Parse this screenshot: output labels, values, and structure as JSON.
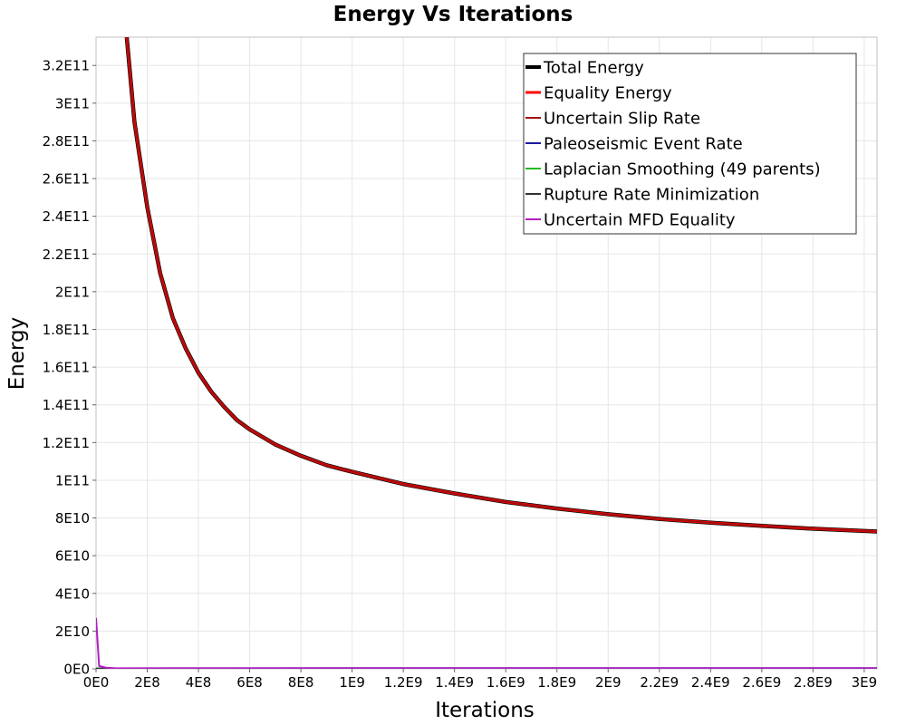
{
  "chart_data": {
    "type": "line",
    "title": "Energy Vs Iterations",
    "xlabel": "Iterations",
    "ylabel": "Energy",
    "xlim": [
      0,
      3050000000
    ],
    "ylim": [
      0,
      335000000000
    ],
    "grid": true,
    "legend_position": "top-right",
    "x_ticks": [
      {
        "value": 0,
        "label": "0E0"
      },
      {
        "value": 200000000,
        "label": "2E8"
      },
      {
        "value": 400000000,
        "label": "4E8"
      },
      {
        "value": 600000000,
        "label": "6E8"
      },
      {
        "value": 800000000,
        "label": "8E8"
      },
      {
        "value": 1000000000,
        "label": "1E9"
      },
      {
        "value": 1200000000,
        "label": "1.2E9"
      },
      {
        "value": 1400000000,
        "label": "1.4E9"
      },
      {
        "value": 1600000000,
        "label": "1.6E9"
      },
      {
        "value": 1800000000,
        "label": "1.8E9"
      },
      {
        "value": 2000000000,
        "label": "2E9"
      },
      {
        "value": 2200000000,
        "label": "2.2E9"
      },
      {
        "value": 2400000000,
        "label": "2.4E9"
      },
      {
        "value": 2600000000,
        "label": "2.6E9"
      },
      {
        "value": 2800000000,
        "label": "2.8E9"
      },
      {
        "value": 3000000000,
        "label": "3E9"
      }
    ],
    "y_ticks": [
      {
        "value": 0,
        "label": "0E0"
      },
      {
        "value": 20000000000,
        "label": "2E10"
      },
      {
        "value": 40000000000,
        "label": "4E10"
      },
      {
        "value": 60000000000,
        "label": "6E10"
      },
      {
        "value": 80000000000,
        "label": "8E10"
      },
      {
        "value": 100000000000,
        "label": "1E11"
      },
      {
        "value": 120000000000,
        "label": "1.2E11"
      },
      {
        "value": 140000000000,
        "label": "1.4E11"
      },
      {
        "value": 160000000000,
        "label": "1.6E11"
      },
      {
        "value": 180000000000,
        "label": "1.8E11"
      },
      {
        "value": 200000000000,
        "label": "2E11"
      },
      {
        "value": 220000000000,
        "label": "2.2E11"
      },
      {
        "value": 240000000000,
        "label": "2.4E11"
      },
      {
        "value": 260000000000,
        "label": "2.6E11"
      },
      {
        "value": 280000000000,
        "label": "2.8E11"
      },
      {
        "value": 300000000000,
        "label": "3E11"
      },
      {
        "value": 320000000000,
        "label": "3.2E11"
      }
    ],
    "series": [
      {
        "name": "Total Energy",
        "color": "#000000",
        "values": [
          [
            120000000,
            335000000000
          ],
          [
            150000000,
            290000000000
          ],
          [
            200000000,
            245000000000
          ],
          [
            250000000,
            210000000000
          ],
          [
            300000000,
            186000000000
          ],
          [
            350000000,
            170000000000
          ],
          [
            400000000,
            157000000000
          ],
          [
            450000000,
            147000000000
          ],
          [
            500000000,
            139000000000
          ],
          [
            550000000,
            132000000000
          ],
          [
            600000000,
            127000000000
          ],
          [
            700000000,
            119000000000
          ],
          [
            800000000,
            113000000000
          ],
          [
            900000000,
            108000000000
          ],
          [
            1000000000,
            104500000000
          ],
          [
            1200000000,
            98000000000
          ],
          [
            1400000000,
            93000000000
          ],
          [
            1600000000,
            88500000000
          ],
          [
            1800000000,
            85000000000
          ],
          [
            2000000000,
            82000000000
          ],
          [
            2200000000,
            79500000000
          ],
          [
            2400000000,
            77500000000
          ],
          [
            2600000000,
            75800000000
          ],
          [
            2800000000,
            74300000000
          ],
          [
            3050000000,
            72800000000
          ]
        ]
      },
      {
        "name": "Equality Energy",
        "color": "#ff0000",
        "values": [
          [
            120000000,
            335000000000
          ],
          [
            150000000,
            290000000000
          ],
          [
            200000000,
            245000000000
          ],
          [
            250000000,
            210000000000
          ],
          [
            300000000,
            186000000000
          ],
          [
            350000000,
            170000000000
          ],
          [
            400000000,
            157000000000
          ],
          [
            450000000,
            147000000000
          ],
          [
            500000000,
            139000000000
          ],
          [
            550000000,
            132000000000
          ],
          [
            600000000,
            127000000000
          ],
          [
            700000000,
            119000000000
          ],
          [
            800000000,
            113000000000
          ],
          [
            900000000,
            108000000000
          ],
          [
            1000000000,
            104500000000
          ],
          [
            1200000000,
            98000000000
          ],
          [
            1400000000,
            93000000000
          ],
          [
            1600000000,
            88500000000
          ],
          [
            1800000000,
            85000000000
          ],
          [
            2000000000,
            82000000000
          ],
          [
            2200000000,
            79500000000
          ],
          [
            2400000000,
            77500000000
          ],
          [
            2600000000,
            75800000000
          ],
          [
            2800000000,
            74300000000
          ],
          [
            3050000000,
            72800000000
          ]
        ]
      },
      {
        "name": "Uncertain Slip Rate",
        "color": "#a01010",
        "values": [
          [
            120000000,
            335000000000
          ],
          [
            150000000,
            290000000000
          ],
          [
            200000000,
            245000000000
          ],
          [
            250000000,
            210000000000
          ],
          [
            300000000,
            186000000000
          ],
          [
            350000000,
            170000000000
          ],
          [
            400000000,
            157000000000
          ],
          [
            450000000,
            147000000000
          ],
          [
            500000000,
            139000000000
          ],
          [
            550000000,
            132000000000
          ],
          [
            600000000,
            127000000000
          ],
          [
            700000000,
            119000000000
          ],
          [
            800000000,
            113000000000
          ],
          [
            900000000,
            108000000000
          ],
          [
            1000000000,
            104500000000
          ],
          [
            1200000000,
            98000000000
          ],
          [
            1400000000,
            93000000000
          ],
          [
            1600000000,
            88500000000
          ],
          [
            1800000000,
            85000000000
          ],
          [
            2000000000,
            82000000000
          ],
          [
            2200000000,
            79500000000
          ],
          [
            2400000000,
            77500000000
          ],
          [
            2600000000,
            75800000000
          ],
          [
            2800000000,
            74300000000
          ],
          [
            3050000000,
            72800000000
          ]
        ]
      },
      {
        "name": "Paleoseismic Event Rate",
        "color": "#1a1aa0",
        "values": [
          [
            0,
            200000000
          ],
          [
            300000000,
            300000000
          ],
          [
            1000000000,
            400000000
          ],
          [
            3050000000,
            400000000
          ]
        ]
      },
      {
        "name": "Laplacian Smoothing (49 parents)",
        "color": "#22bb22",
        "values": [
          [
            0,
            100000000
          ],
          [
            3050000000,
            100000000
          ]
        ]
      },
      {
        "name": "Rupture Rate Minimization",
        "color": "#333333",
        "values": [
          [
            0,
            50000000
          ],
          [
            3050000000,
            50000000
          ]
        ]
      },
      {
        "name": "Uncertain MFD Equality",
        "color": "#b020c0",
        "values": [
          [
            0,
            27000000000
          ],
          [
            12000000,
            1500000000
          ],
          [
            40000000,
            600000000
          ],
          [
            80000000,
            300000000
          ],
          [
            200000000,
            300000000
          ],
          [
            3050000000,
            300000000
          ]
        ]
      }
    ]
  }
}
